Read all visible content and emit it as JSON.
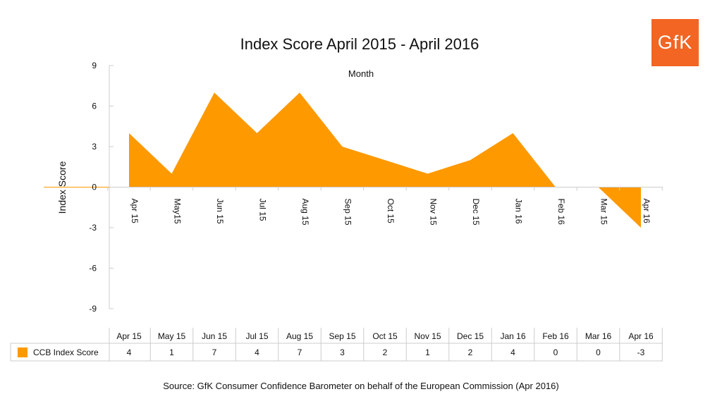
{
  "chart_data": {
    "type": "area",
    "title": "Index Score April 2015 - April 2016",
    "xlabel": "Month",
    "ylabel": "Index Score",
    "ylim": [
      -9,
      9
    ],
    "yticks": [
      9,
      6,
      3,
      0,
      -3,
      -6,
      -9
    ],
    "grid": false,
    "axis_categories": [
      "Apr 15",
      "May15",
      "Jun 15",
      "Jul 15",
      "Aug 15",
      "Sep 15",
      "Oct 15",
      "Nov 15",
      "Dec 15",
      "Jan 16",
      "Feb 16",
      "Mar 15",
      "Apr 16"
    ],
    "categories": [
      "Apr 15",
      "May 15",
      "Jun 15",
      "Jul 15",
      "Aug 15",
      "Sep 15",
      "Oct 15",
      "Nov 15",
      "Dec 15",
      "Jan 16",
      "Feb 16",
      "Mar 16",
      "Apr 16"
    ],
    "series": [
      {
        "name": "CCB Index Score",
        "color": "#ff9900",
        "values": [
          4,
          1,
          7,
          4,
          7,
          3,
          2,
          1,
          2,
          4,
          0,
          0,
          -3
        ]
      }
    ],
    "legend": "data-table-left"
  },
  "logo_text": "GfK",
  "logo_color": "#f26522",
  "source": "Source: GfK Consumer Confidence Barometer on behalf of the European Commission (Apr 2016)"
}
